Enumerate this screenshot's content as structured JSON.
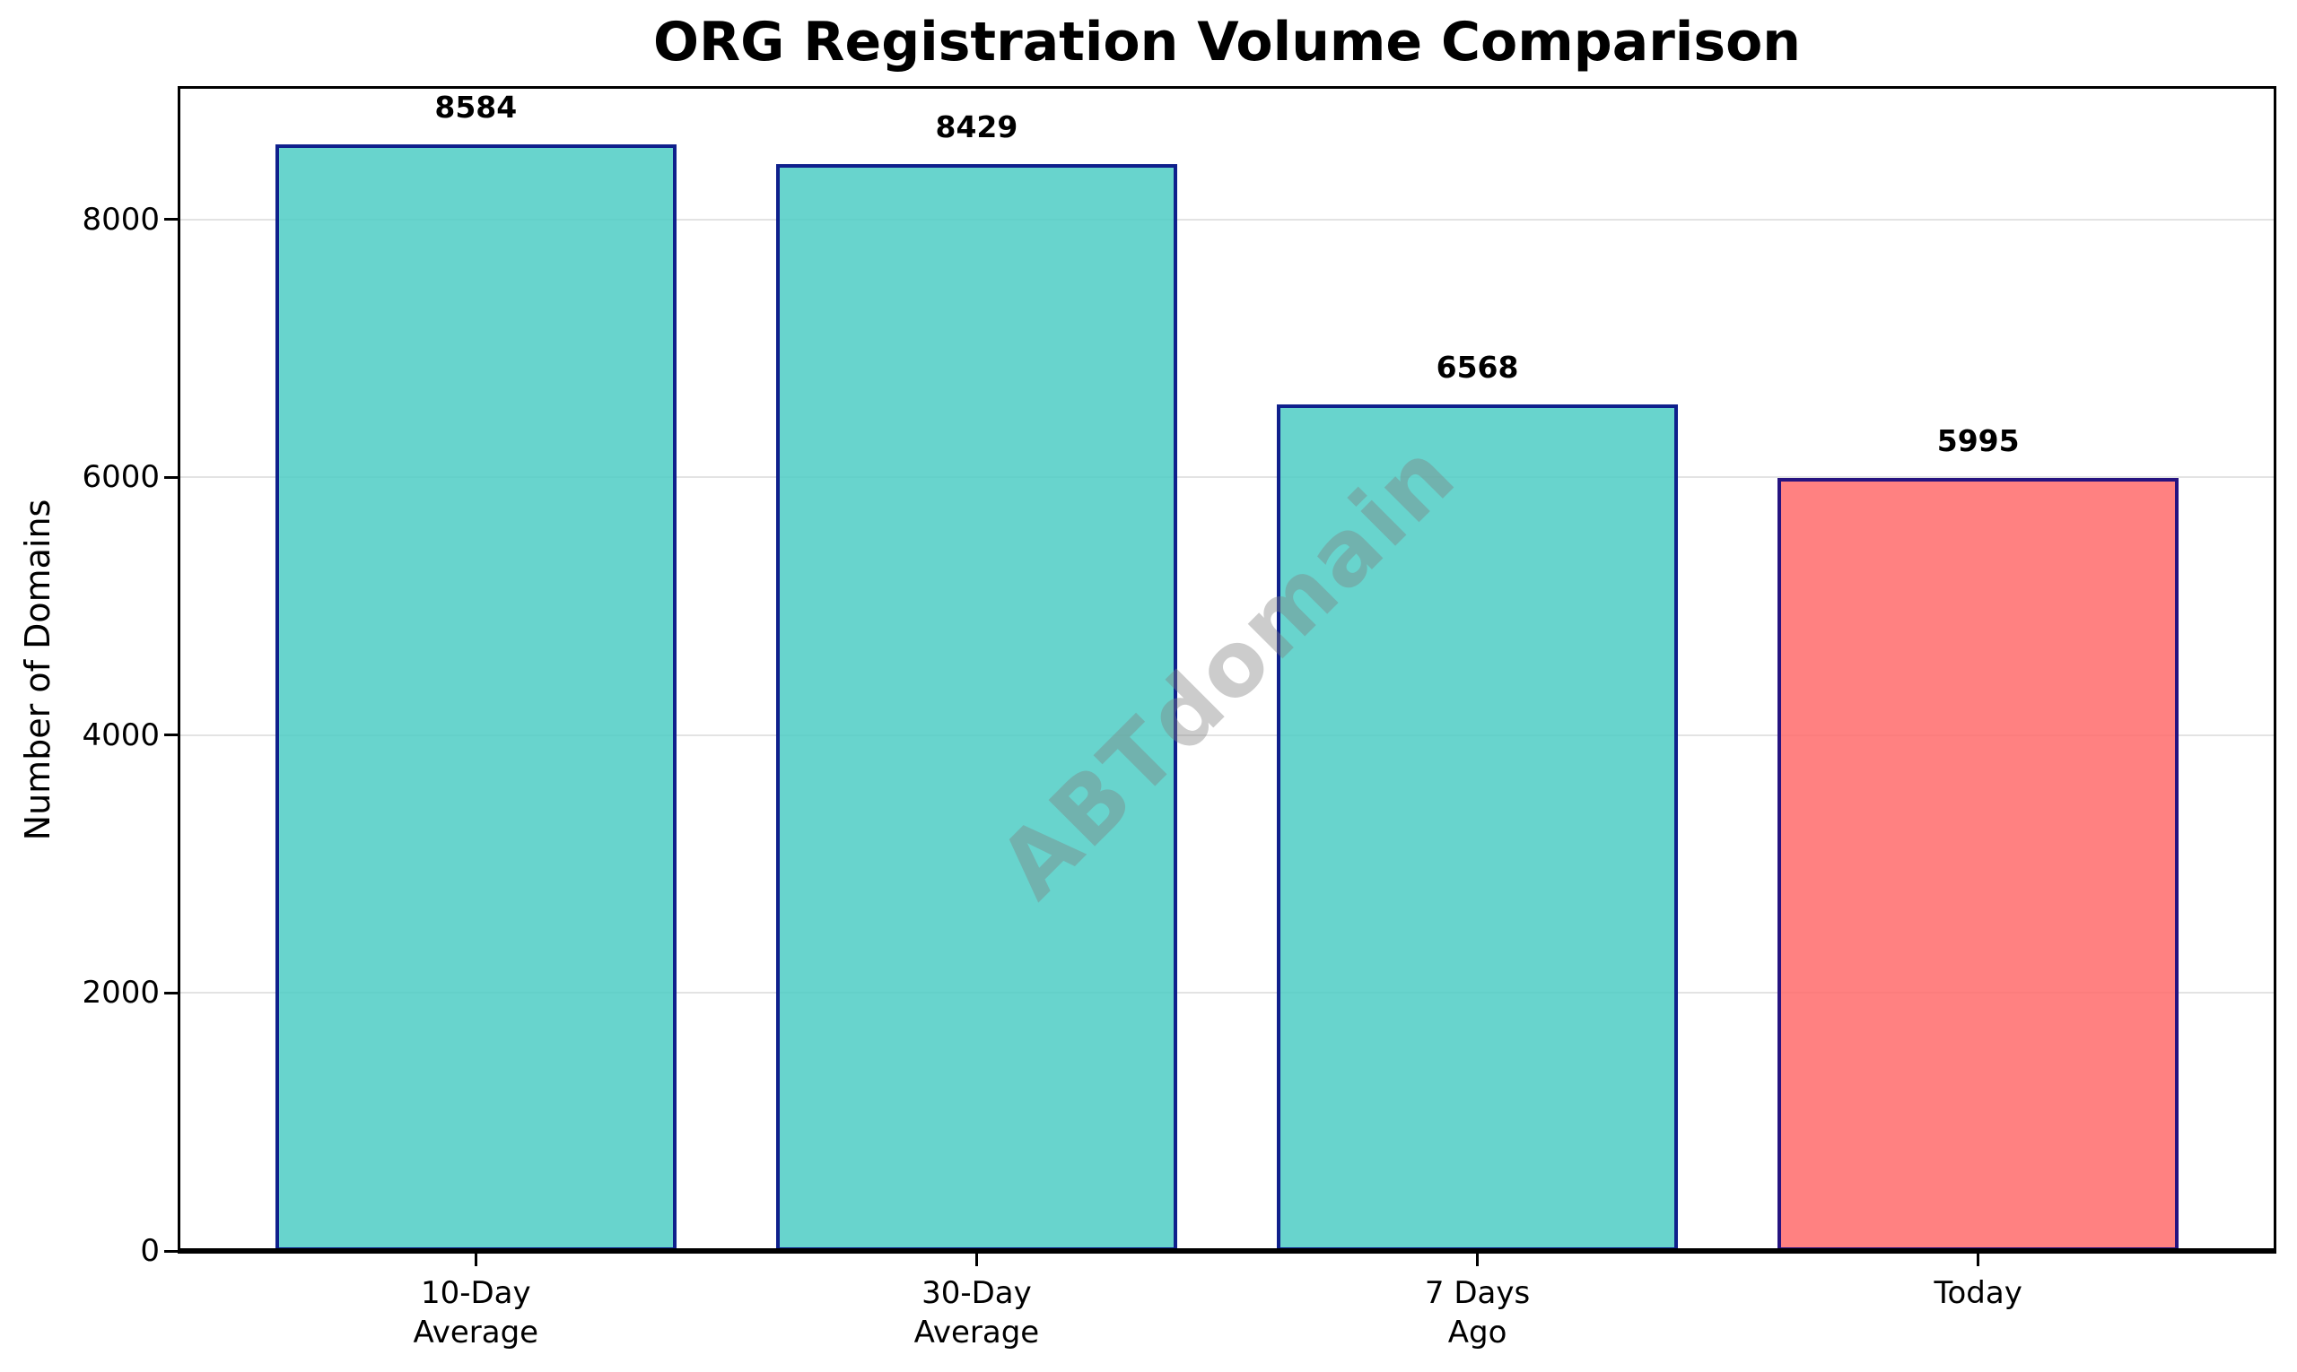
{
  "watermark": "ABTdomain",
  "colors": {
    "bar_teal": "#4ECDC4",
    "bar_red": "#FF6B6B",
    "bar_edge": "#000080",
    "grid": "#e3e3e3",
    "spine": "#000000",
    "watermark_gray": "#808080"
  },
  "chart_data": {
    "type": "bar",
    "title": "ORG Registration Volume Comparison",
    "xlabel": "",
    "ylabel": "Number of Domains",
    "categories": [
      [
        "10-Day",
        "Average"
      ],
      [
        "30-Day",
        "Average"
      ],
      [
        "7 Days",
        "Ago"
      ],
      [
        "Today"
      ]
    ],
    "values": [
      8584,
      8429,
      6568,
      5995
    ],
    "value_labels": [
      "8584",
      "8429",
      "6568",
      "5995"
    ],
    "bar_colors": [
      "#4ECDC4",
      "#4ECDC4",
      "#4ECDC4",
      "#FF6B6B"
    ],
    "bar_alpha": 0.85,
    "edge_color": "#000080",
    "yticks": [
      0,
      2000,
      4000,
      6000,
      8000
    ],
    "ytick_labels": [
      "0",
      "2000",
      "4000",
      "6000",
      "8000"
    ],
    "ylim": [
      0,
      9013
    ],
    "bar_width": 0.8,
    "x_margin": 0.05,
    "grid": "horizontal",
    "legend": "none",
    "watermark": "ABTdomain"
  }
}
